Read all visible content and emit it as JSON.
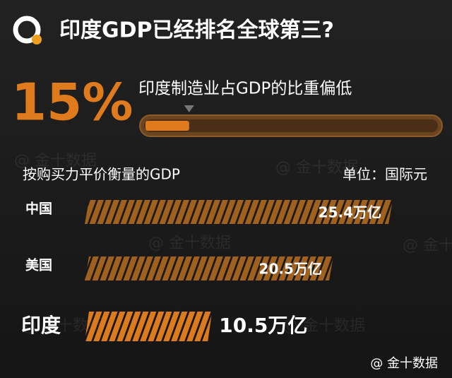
{
  "header": {
    "title": "印度GDP已经排名全球第三?"
  },
  "watermark": "@ 金十数据",
  "chart_data": [
    {
      "type": "progress",
      "title": "印度制造业占GDP的比重偏低",
      "values": [
        15
      ],
      "value_labels": [
        "15%"
      ],
      "color": "#e07b1d",
      "xlim": [
        0,
        100
      ]
    },
    {
      "type": "bar",
      "title": "按购买力平价衡量的GDP",
      "subtitle": "单位：国际元",
      "categories": [
        "中国",
        "美国",
        "印度"
      ],
      "values": [
        25.4,
        20.5,
        10.5
      ],
      "value_labels": [
        "25.4万亿",
        "20.5万亿",
        "10.5万亿"
      ],
      "colors": [
        "#a0601e",
        "#a0601e",
        "#dc7a1e"
      ],
      "xlim": [
        0,
        30
      ]
    }
  ]
}
